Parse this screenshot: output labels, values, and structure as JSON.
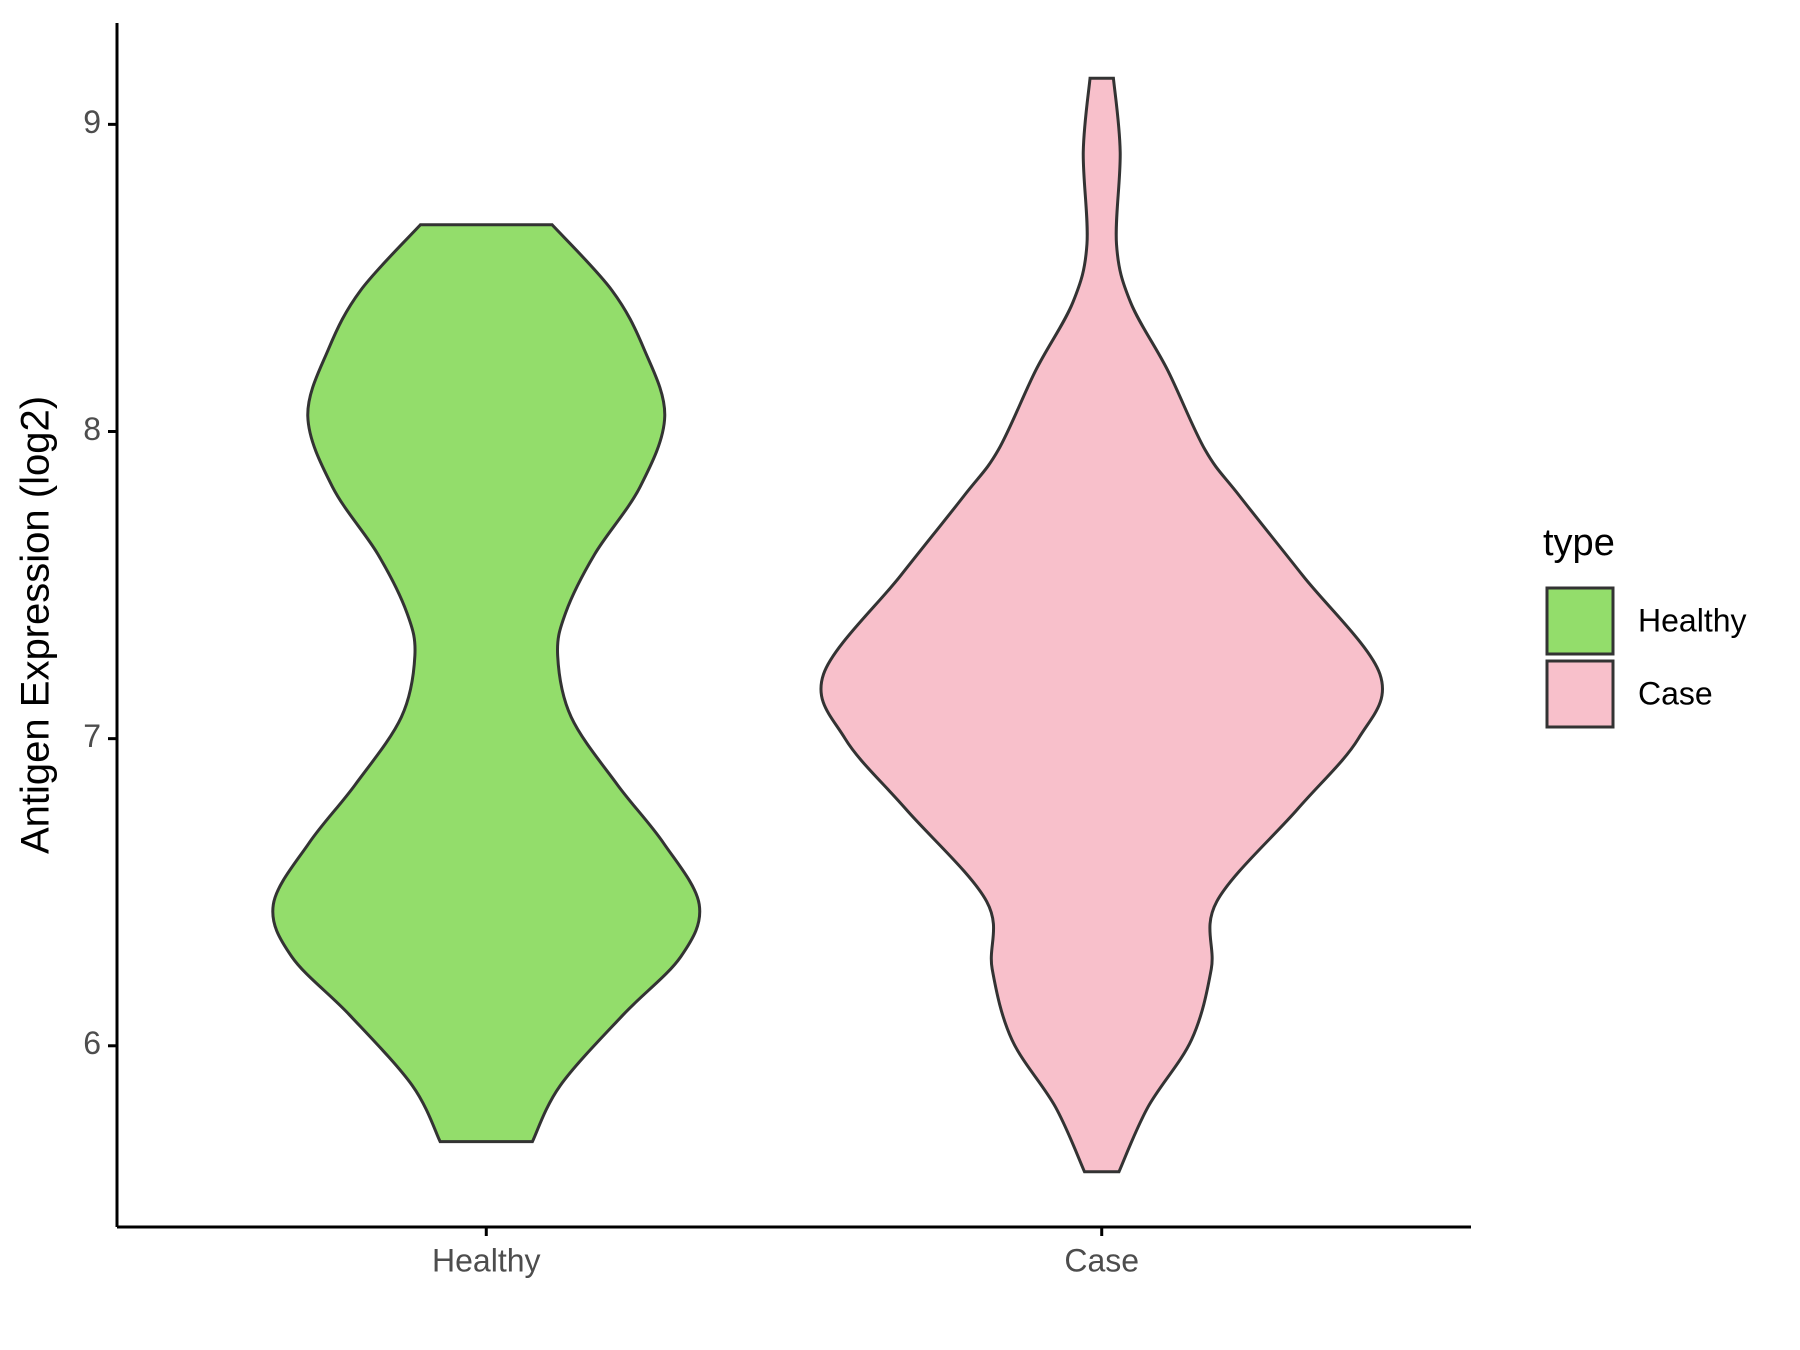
{
  "chart_data": {
    "type": "violin",
    "y_label": "Antigen Expression (log2)",
    "legend_title": "type",
    "categories": [
      "Healthy",
      "Case"
    ],
    "xlim": [
      0.4,
      2.6
    ],
    "ylim": [
      5.41,
      9.33
    ],
    "yticks": [
      6,
      7,
      8,
      9
    ],
    "grid": false,
    "legend_position": "right",
    "series": [
      {
        "name": "Healthy",
        "color": "#93dd6b",
        "y": [
          8.673,
          8.46,
          8.27,
          8.05,
          7.82,
          7.6,
          7.41,
          7.27,
          7.07,
          6.85,
          6.66,
          6.46,
          6.29,
          6.1,
          5.87,
          5.688
        ],
        "half_width": [
          0.107,
          0.204,
          0.256,
          0.29,
          0.25,
          0.176,
          0.129,
          0.116,
          0.138,
          0.213,
          0.288,
          0.346,
          0.316,
          0.222,
          0.12,
          0.075
        ]
      },
      {
        "name": "Case",
        "color": "#f8c0cb",
        "y": [
          9.15,
          8.91,
          8.61,
          8.42,
          8.2,
          7.94,
          7.79,
          7.53,
          7.21,
          7.0,
          6.77,
          6.47,
          6.25,
          6.02,
          5.8,
          5.59
        ],
        "half_width": [
          0.019,
          0.03,
          0.024,
          0.047,
          0.107,
          0.168,
          0.224,
          0.327,
          0.452,
          0.417,
          0.318,
          0.187,
          0.178,
          0.146,
          0.075,
          0.028
        ]
      }
    ]
  }
}
